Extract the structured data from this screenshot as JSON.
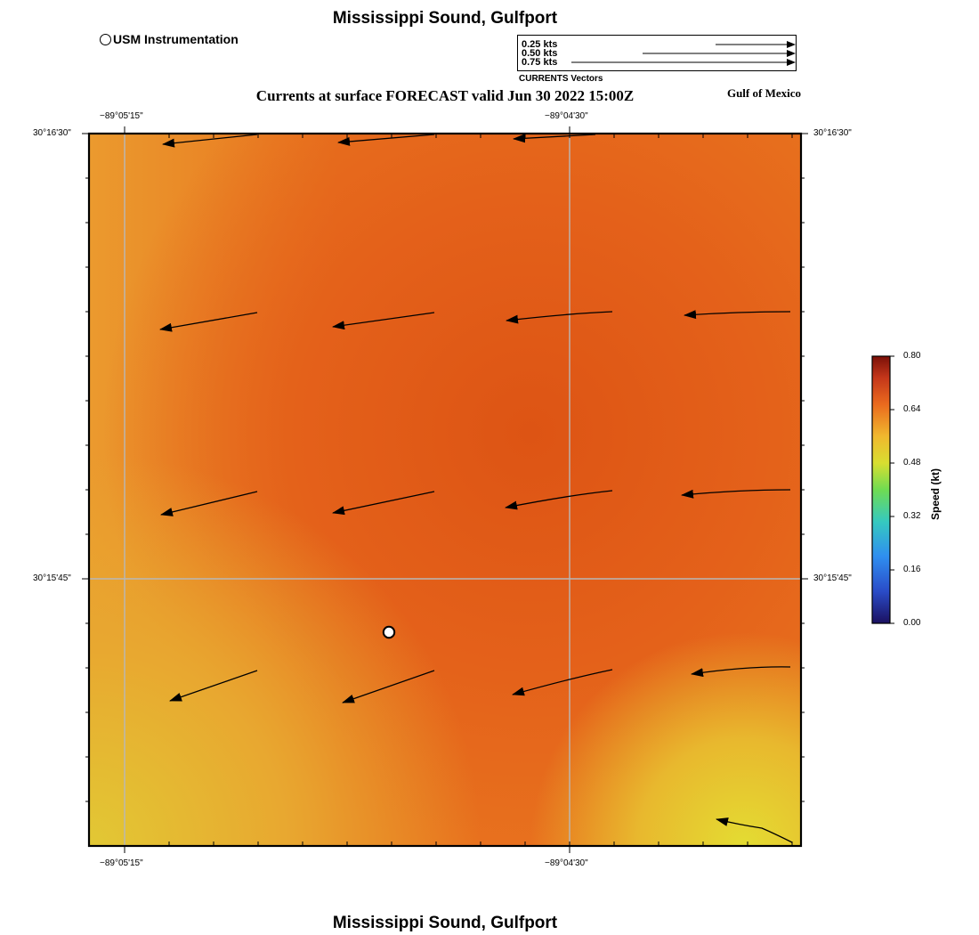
{
  "title": "Mississippi Sound, Gulfport",
  "footer_title": "Mississippi Sound, Gulfport",
  "subtitle": "Currents at surface FORECAST valid Jun 30 2022 15:00Z",
  "region_label": "Gulf of Mexico",
  "station_legend": {
    "label": "USM Instrumentation",
    "icon": "circle-station-icon"
  },
  "vector_legend": {
    "caption": "CURRENTS Vectors",
    "items": [
      {
        "label": "0.25 kts",
        "speed_kt": 0.25
      },
      {
        "label": "0.50 kts",
        "speed_kt": 0.5
      },
      {
        "label": "0.75 kts",
        "speed_kt": 0.75
      }
    ]
  },
  "axes": {
    "lon_ticks": [
      "−89°05'15\"",
      "−89°04'30\""
    ],
    "lat_ticks": [
      "30°16'30\"",
      "30°15'45\""
    ]
  },
  "colorbar": {
    "title": "Speed (kt)",
    "min": 0.0,
    "max": 0.8,
    "ticks": [
      "0.00",
      "0.16",
      "0.32",
      "0.48",
      "0.64",
      "0.80"
    ],
    "colors": [
      "#1b1060",
      "#2b6ef0",
      "#35c9c0",
      "#8ee04a",
      "#e8dc2c",
      "#f0a030",
      "#e8641c",
      "#b02a14",
      "#7a1008"
    ]
  },
  "map_colors": {
    "speed_max_area": "#e05a16",
    "speed_mid_area": "#ec8c2a",
    "speed_low_area": "#e6c832"
  },
  "chart_data": {
    "type": "vector-field",
    "title": "Currents at surface FORECAST valid Jun 30 2022 15:00Z",
    "units": "kt",
    "direction_note": "all vectors point roughly westward",
    "station": {
      "name": "USM Instrumentation"
    }
  }
}
